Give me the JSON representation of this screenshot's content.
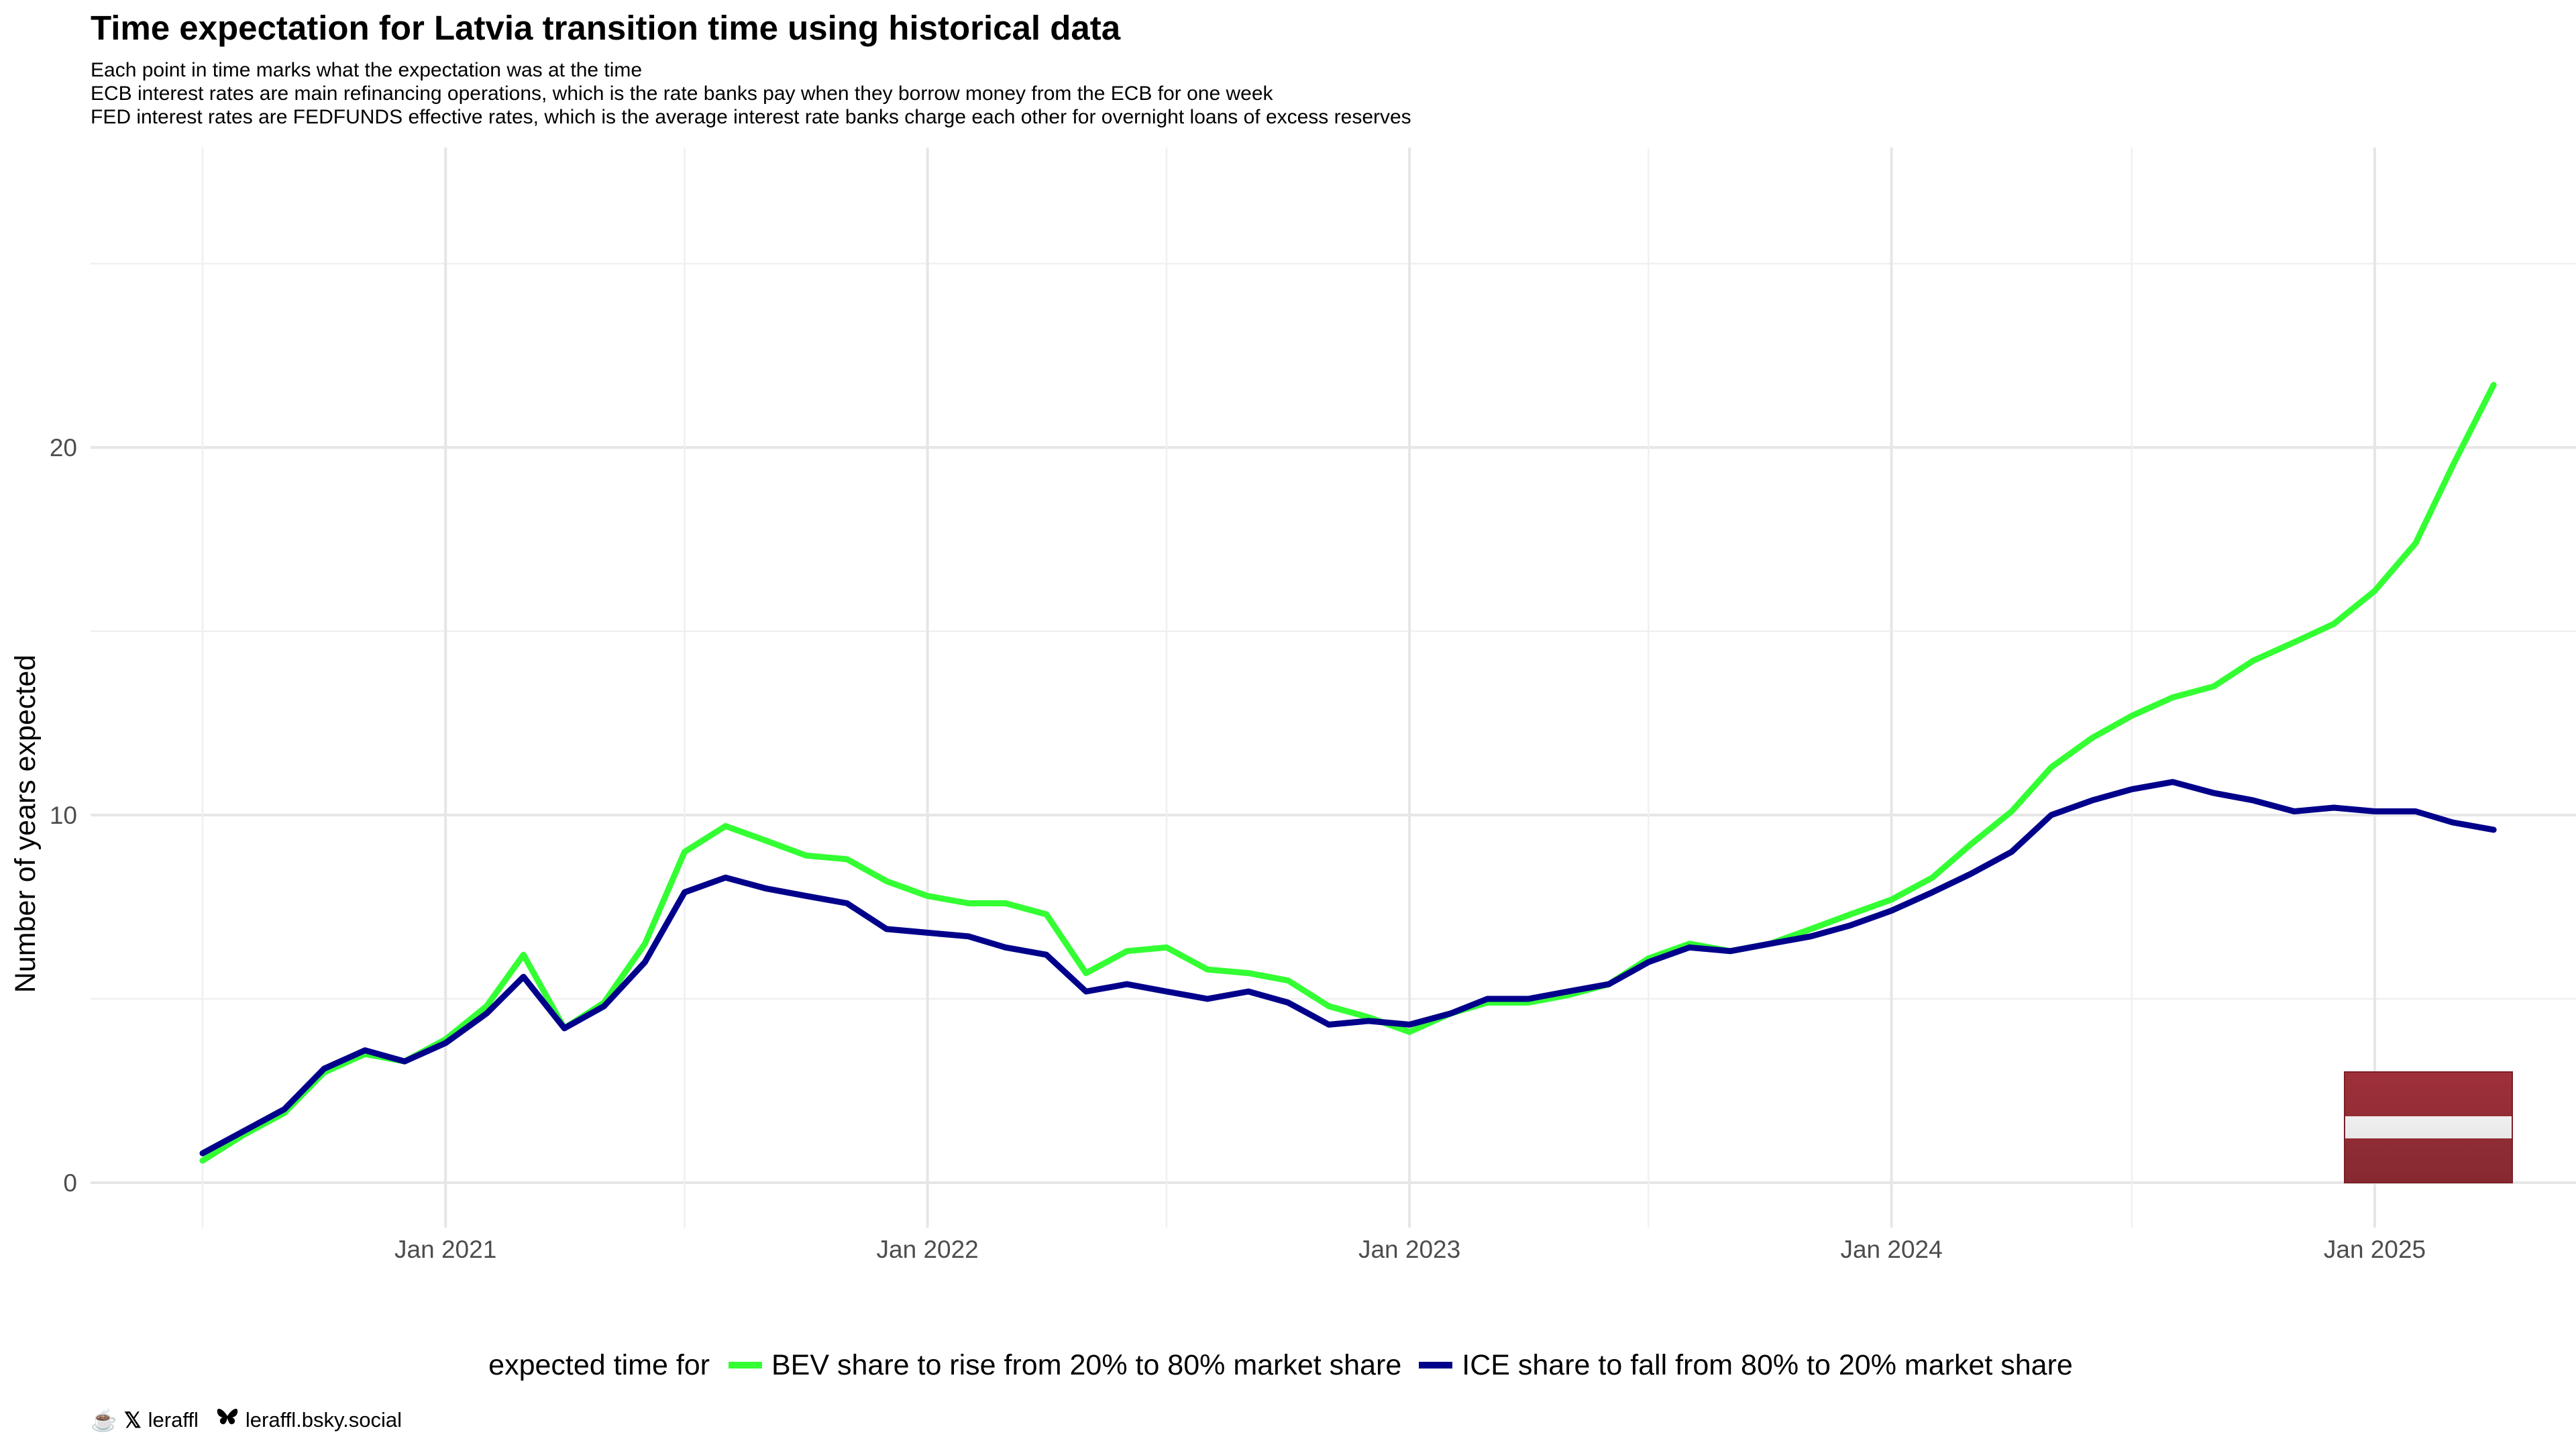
{
  "title": "Time expectation for Latvia transition time using historical data",
  "subtitle_lines": [
    "Each point in time marks what the expectation was at the time",
    "ECB interest rates are main refinancing operations, which is the rate banks pay when they borrow money from the ECB for one week",
    "FED interest rates are FEDFUNDS effective rates, which is the average interest rate banks charge each other for overnight loans of excess reserves"
  ],
  "legend": {
    "title": "expected time for",
    "items": [
      {
        "label": "BEV share to rise from 20% to 80% market share",
        "color": "#33ff33"
      },
      {
        "label": "ICE share to fall from 80% to 20% market share",
        "color": "#00008b"
      }
    ]
  },
  "footer": {
    "handle_x": "leraffl",
    "handle_bsky": "leraffl.bsky.social",
    "icons": [
      "coffee-cup-icon",
      "x-logo-icon",
      "butterfly-icon"
    ]
  },
  "flag": {
    "country": "Latvia",
    "colors": [
      "#9e3039",
      "#ffffff",
      "#9e3039"
    ]
  },
  "chart_data": {
    "type": "line",
    "ylabel": "Number of years expected",
    "xlabel": "",
    "x_ticks": [
      "Jan 2021",
      "Jan 2022",
      "Jan 2023",
      "Jan 2024",
      "Jan 2025"
    ],
    "y_ticks": [
      0,
      10,
      20
    ],
    "xlim": [
      "2020-07-01",
      "2025-04-01"
    ],
    "ylim": [
      0,
      25
    ],
    "grid": true,
    "legend_position": "bottom",
    "x": [
      "2020-07",
      "2020-08",
      "2020-09",
      "2020-10",
      "2020-11",
      "2020-12",
      "2021-01",
      "2021-02",
      "2021-03",
      "2021-04",
      "2021-05",
      "2021-06",
      "2021-07",
      "2021-08",
      "2021-09",
      "2021-10",
      "2021-11",
      "2021-12",
      "2022-01",
      "2022-02",
      "2022-03",
      "2022-04",
      "2022-05",
      "2022-06",
      "2022-07",
      "2022-08",
      "2022-09",
      "2022-10",
      "2022-11",
      "2022-12",
      "2023-01",
      "2023-02",
      "2023-03",
      "2023-04",
      "2023-05",
      "2023-06",
      "2023-07",
      "2023-08",
      "2023-09",
      "2023-10",
      "2023-11",
      "2023-12",
      "2024-01",
      "2024-02",
      "2024-03",
      "2024-04",
      "2024-05",
      "2024-06",
      "2024-07",
      "2024-08",
      "2024-09",
      "2024-10",
      "2024-11",
      "2024-12",
      "2025-01",
      "2025-02",
      "2025-03",
      "2025-04"
    ],
    "series": [
      {
        "name": "BEV share to rise from 20% to 80% market share",
        "color": "#33ff33",
        "values": [
          0.6,
          1.3,
          1.9,
          3.0,
          3.5,
          3.3,
          3.9,
          4.8,
          6.2,
          4.2,
          4.9,
          6.5,
          9.0,
          9.7,
          9.3,
          8.9,
          8.8,
          8.2,
          7.8,
          7.6,
          7.6,
          7.3,
          5.7,
          6.3,
          6.4,
          5.8,
          5.7,
          5.5,
          4.8,
          4.5,
          4.1,
          4.6,
          4.9,
          4.9,
          5.1,
          5.4,
          6.1,
          6.5,
          6.3,
          6.5,
          6.9,
          7.3,
          7.7,
          8.3,
          9.2,
          10.1,
          11.3,
          12.1,
          12.7,
          13.2,
          13.5,
          14.2,
          14.7,
          15.2,
          16.1,
          17.4,
          19.5,
          21.7
        ]
      },
      {
        "name": "ICE share to fall from 80% to 20% market share",
        "color": "#00008b",
        "values": [
          0.8,
          1.4,
          2.0,
          3.1,
          3.6,
          3.3,
          3.8,
          4.6,
          5.6,
          4.2,
          4.8,
          6.0,
          7.9,
          8.3,
          8.0,
          7.8,
          7.6,
          6.9,
          6.8,
          6.7,
          6.4,
          6.2,
          5.2,
          5.4,
          5.2,
          5.0,
          5.2,
          4.9,
          4.3,
          4.4,
          4.3,
          4.6,
          5.0,
          5.0,
          5.2,
          5.4,
          6.0,
          6.4,
          6.3,
          6.5,
          6.7,
          7.0,
          7.4,
          7.9,
          8.4,
          9.0,
          10.0,
          10.4,
          10.7,
          10.9,
          10.6,
          10.4,
          10.1,
          10.2,
          10.1,
          10.1,
          9.8,
          9.6
        ]
      }
    ]
  }
}
